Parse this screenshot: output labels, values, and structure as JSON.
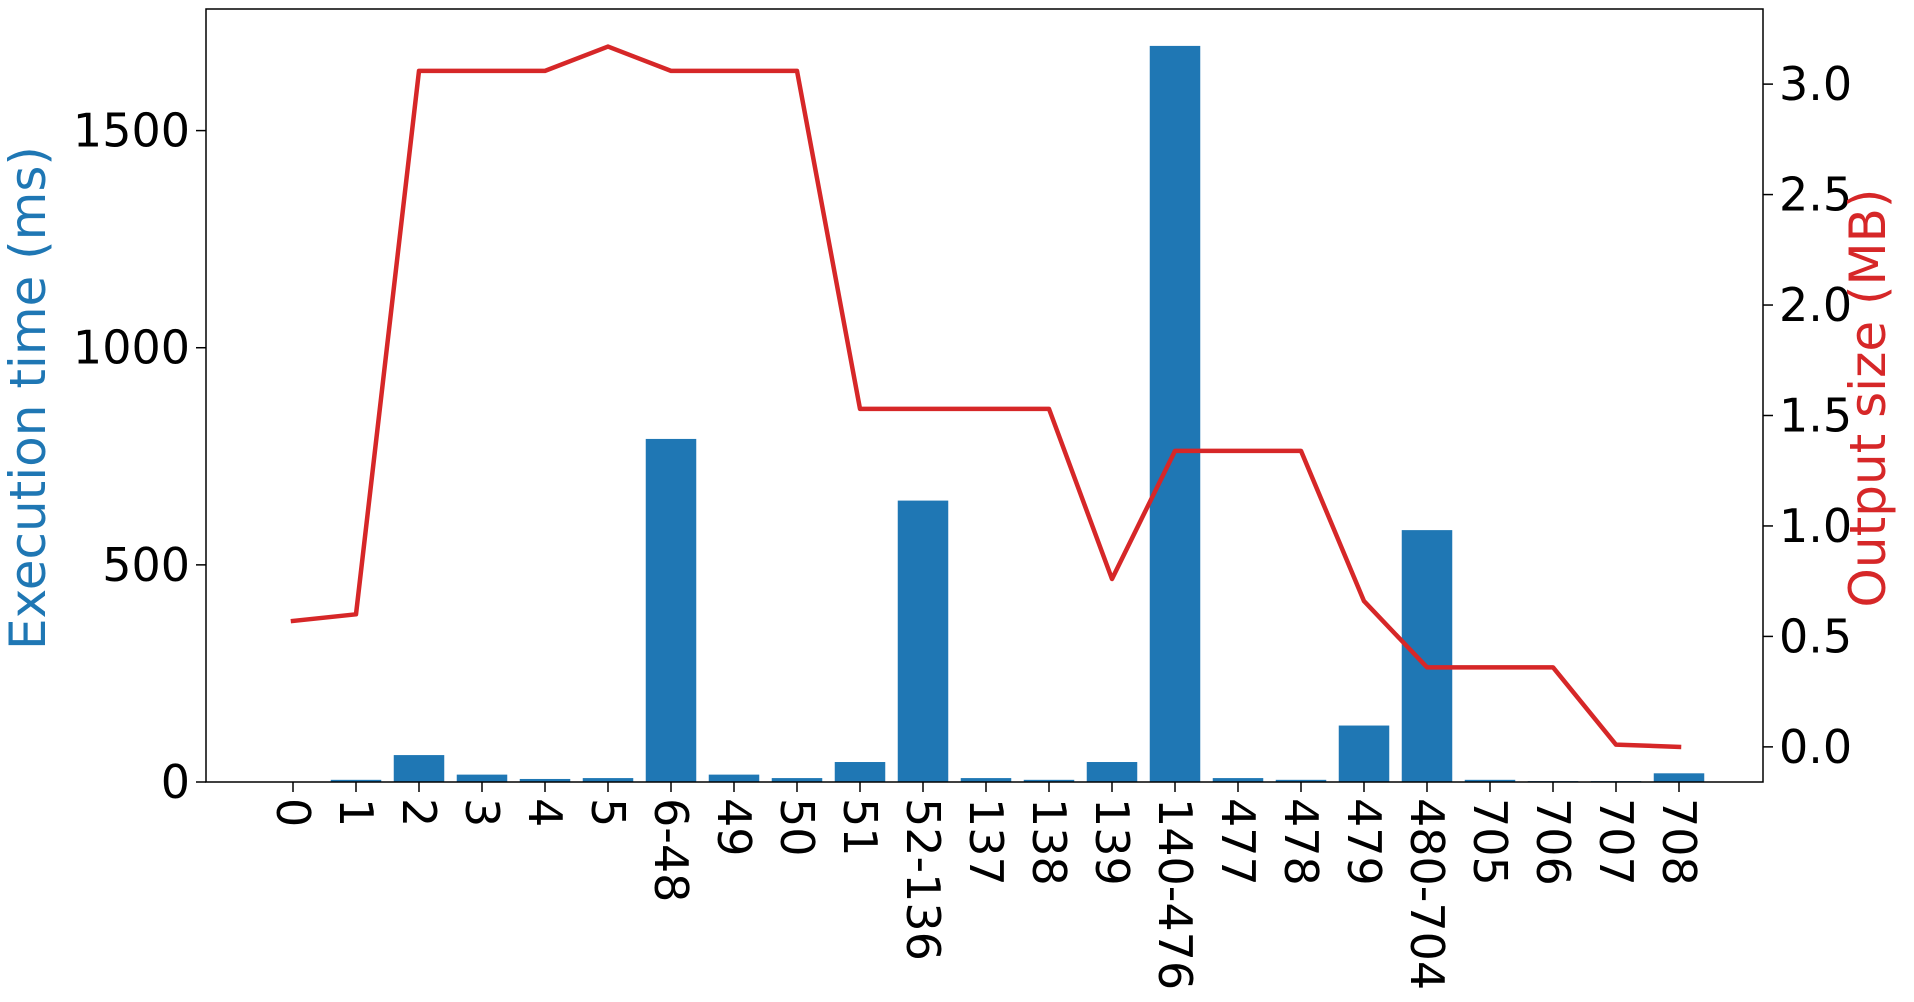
{
  "chart_data": {
    "type": "bar",
    "categories": [
      "0",
      "1",
      "2",
      "3",
      "4",
      "5",
      "6-48",
      "49",
      "50",
      "51",
      "52-136",
      "137",
      "138",
      "139",
      "140-476",
      "477",
      "478",
      "479",
      "480-704",
      "705",
      "706",
      "707",
      "708"
    ],
    "series": [
      {
        "kind": "bar",
        "axis": "left",
        "color": "#1f77b4",
        "values": [
          1,
          5,
          62,
          17,
          7,
          9,
          790,
          17,
          9,
          46,
          648,
          9,
          5,
          46,
          1695,
          9,
          5,
          130,
          580,
          5,
          2,
          2,
          20
        ]
      },
      {
        "kind": "line",
        "axis": "right",
        "color": "#d62728",
        "values": [
          0.57,
          0.6,
          3.06,
          3.06,
          3.06,
          3.17,
          3.06,
          3.06,
          3.06,
          1.53,
          1.53,
          1.53,
          1.53,
          0.76,
          1.34,
          1.34,
          1.34,
          0.66,
          0.36,
          0.36,
          0.36,
          0.01,
          0.0
        ]
      }
    ],
    "ylabel": "Execution time (ms)",
    "ylabel_color": "#1f77b4",
    "ylim": [
      0,
      1780
    ],
    "yticks": [
      "0",
      "500",
      "1000",
      "1500"
    ],
    "ytick_values": [
      0,
      500,
      1000,
      1500
    ],
    "y2label": "Output size (MB)",
    "y2label_color": "#d62728",
    "y2lim": [
      -0.159,
      3.34
    ],
    "y2ticks": [
      "0.0",
      "0.5",
      "1.0",
      "1.5",
      "2.0",
      "2.5",
      "3.0"
    ],
    "y2tick_values": [
      0.0,
      0.5,
      1.0,
      1.5,
      2.0,
      2.5,
      3.0
    ],
    "grid": false,
    "legend": "none"
  }
}
